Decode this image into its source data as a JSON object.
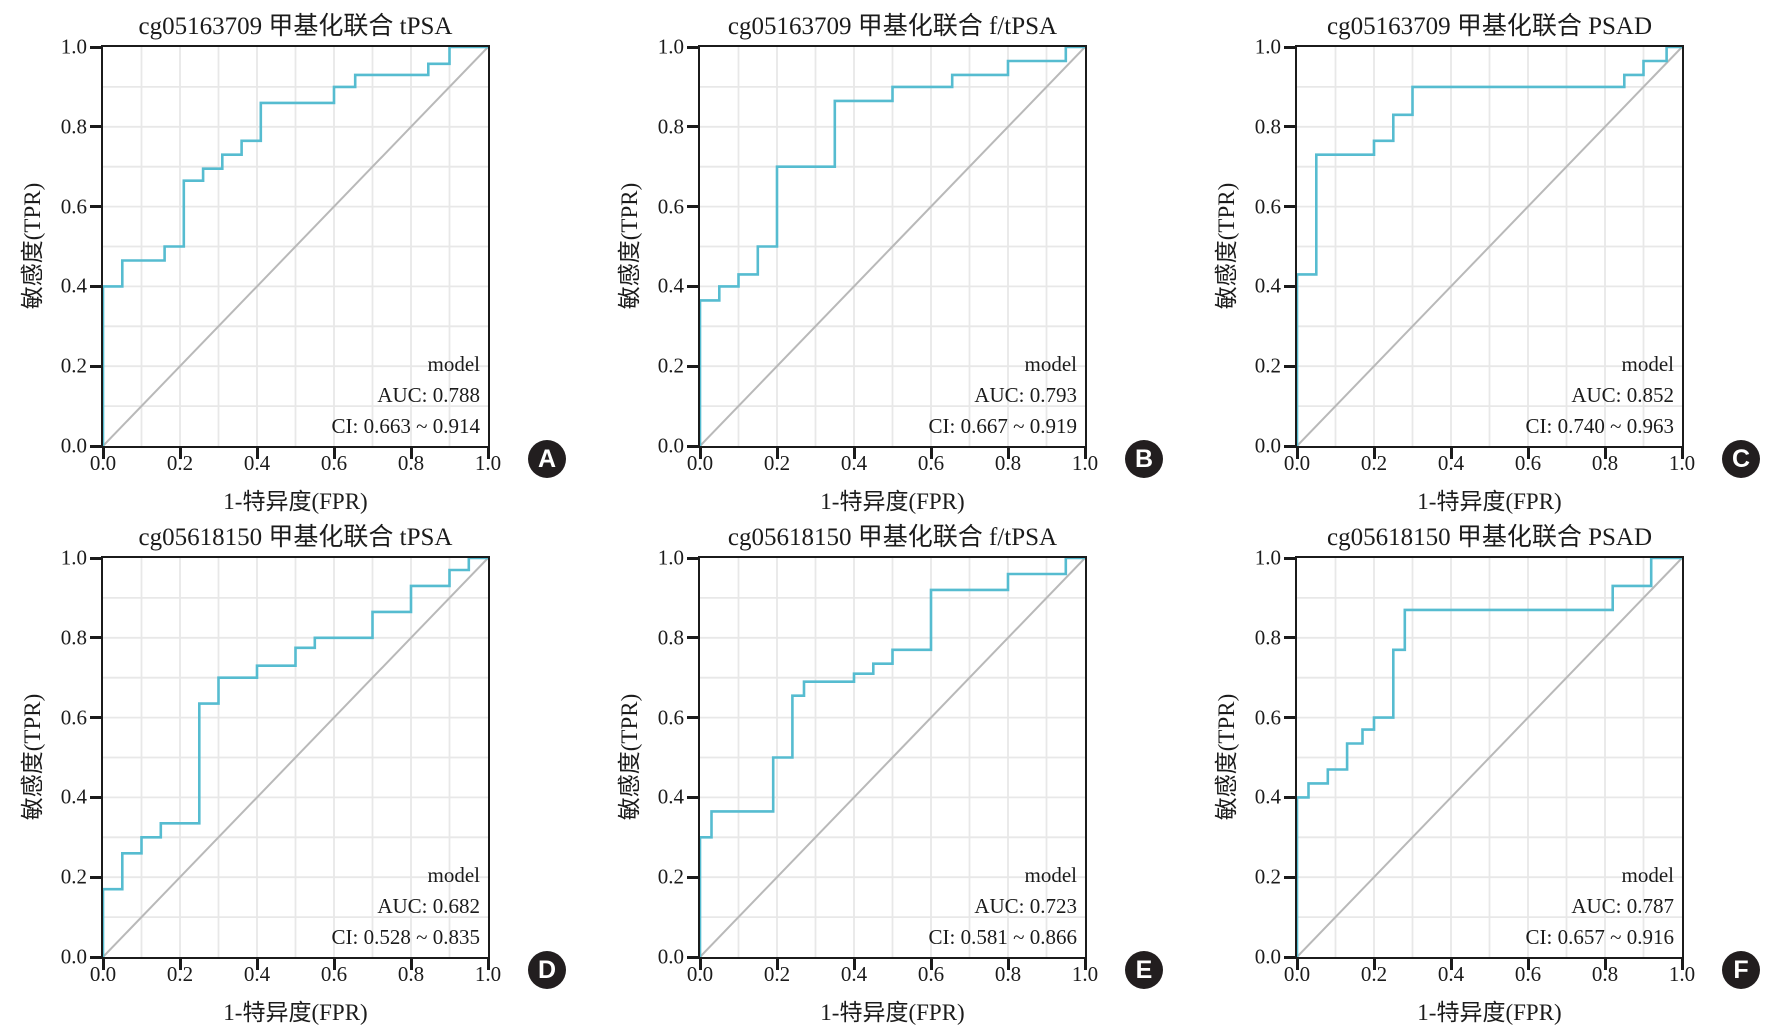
{
  "figure": {
    "background": "#ffffff",
    "curve_color": "#56bcd0",
    "reference_color": "#b9b9b9",
    "grid_color": "#e8e8e8",
    "axis_color": "#1b1b1b",
    "badge_bg": "#221e1f",
    "badge_fg": "#ffffff"
  },
  "chart_data": [
    {
      "type": "line",
      "panel": "A",
      "title": "cg05163709 甲基化联合 tPSA",
      "xlabel": "1-特异度(FPR)",
      "ylabel": "敏感度(TPR)",
      "legend": "model",
      "auc": "0.788",
      "ci": "0.663 ~ 0.914",
      "annotation": [
        "model",
        "AUC: 0.788",
        "CI: 0.663 ~ 0.914"
      ],
      "xlim": [
        0,
        1
      ],
      "ylim": [
        0,
        1
      ],
      "grid_interval": 0.1,
      "xticks": [
        "0.0",
        "0.2",
        "0.4",
        "0.6",
        "0.8",
        "1.0"
      ],
      "yticks": [
        "0.0",
        "0.2",
        "0.4",
        "0.6",
        "0.8",
        "1.0"
      ],
      "reference_line": [
        [
          0,
          0
        ],
        [
          1,
          1
        ]
      ],
      "roc_curve": [
        [
          0,
          0
        ],
        [
          0,
          0.4
        ],
        [
          0.05,
          0.4
        ],
        [
          0.05,
          0.465
        ],
        [
          0.16,
          0.465
        ],
        [
          0.16,
          0.5
        ],
        [
          0.21,
          0.5
        ],
        [
          0.21,
          0.665
        ],
        [
          0.26,
          0.665
        ],
        [
          0.26,
          0.695
        ],
        [
          0.31,
          0.695
        ],
        [
          0.31,
          0.73
        ],
        [
          0.36,
          0.73
        ],
        [
          0.36,
          0.765
        ],
        [
          0.41,
          0.765
        ],
        [
          0.41,
          0.86
        ],
        [
          0.6,
          0.86
        ],
        [
          0.6,
          0.9
        ],
        [
          0.655,
          0.9
        ],
        [
          0.655,
          0.93
        ],
        [
          0.845,
          0.93
        ],
        [
          0.845,
          0.958
        ],
        [
          0.9,
          0.958
        ],
        [
          0.9,
          1.0
        ],
        [
          1,
          1
        ]
      ]
    },
    {
      "type": "line",
      "panel": "B",
      "title": "cg05163709 甲基化联合 f/tPSA",
      "xlabel": "1-特异度(FPR)",
      "ylabel": "敏感度(TPR)",
      "legend": "model",
      "auc": "0.793",
      "ci": "0.667 ~ 0.919",
      "annotation": [
        "model",
        "AUC: 0.793",
        "CI: 0.667 ~ 0.919"
      ],
      "xlim": [
        0,
        1
      ],
      "ylim": [
        0,
        1
      ],
      "grid_interval": 0.1,
      "xticks": [
        "0.0",
        "0.2",
        "0.4",
        "0.6",
        "0.8",
        "1.0"
      ],
      "yticks": [
        "0.0",
        "0.2",
        "0.4",
        "0.6",
        "0.8",
        "1.0"
      ],
      "reference_line": [
        [
          0,
          0
        ],
        [
          1,
          1
        ]
      ],
      "roc_curve": [
        [
          0,
          0
        ],
        [
          0,
          0.365
        ],
        [
          0.05,
          0.365
        ],
        [
          0.05,
          0.4
        ],
        [
          0.1,
          0.4
        ],
        [
          0.1,
          0.43
        ],
        [
          0.15,
          0.43
        ],
        [
          0.15,
          0.5
        ],
        [
          0.2,
          0.5
        ],
        [
          0.2,
          0.7
        ],
        [
          0.35,
          0.7
        ],
        [
          0.35,
          0.865
        ],
        [
          0.5,
          0.865
        ],
        [
          0.5,
          0.9
        ],
        [
          0.655,
          0.9
        ],
        [
          0.655,
          0.93
        ],
        [
          0.8,
          0.93
        ],
        [
          0.8,
          0.965
        ],
        [
          0.95,
          0.965
        ],
        [
          0.95,
          1.0
        ],
        [
          1,
          1
        ]
      ]
    },
    {
      "type": "line",
      "panel": "C",
      "title": "cg05163709 甲基化联合 PSAD",
      "xlabel": "1-特异度(FPR)",
      "ylabel": "敏感度(TPR)",
      "legend": "model",
      "auc": "0.852",
      "ci": "0.740 ~ 0.963",
      "annotation": [
        "model",
        "AUC: 0.852",
        "CI: 0.740 ~ 0.963"
      ],
      "xlim": [
        0,
        1
      ],
      "ylim": [
        0,
        1
      ],
      "grid_interval": 0.1,
      "xticks": [
        "0.0",
        "0.2",
        "0.4",
        "0.6",
        "0.8",
        "1.0"
      ],
      "yticks": [
        "0.0",
        "0.2",
        "0.4",
        "0.6",
        "0.8",
        "1.0"
      ],
      "reference_line": [
        [
          0,
          0
        ],
        [
          1,
          1
        ]
      ],
      "roc_curve": [
        [
          0,
          0
        ],
        [
          0,
          0.43
        ],
        [
          0.05,
          0.43
        ],
        [
          0.05,
          0.73
        ],
        [
          0.2,
          0.73
        ],
        [
          0.2,
          0.765
        ],
        [
          0.25,
          0.765
        ],
        [
          0.25,
          0.83
        ],
        [
          0.3,
          0.83
        ],
        [
          0.3,
          0.9
        ],
        [
          0.85,
          0.9
        ],
        [
          0.85,
          0.93
        ],
        [
          0.9,
          0.93
        ],
        [
          0.9,
          0.965
        ],
        [
          0.96,
          0.965
        ],
        [
          0.96,
          1.0
        ],
        [
          1,
          1
        ]
      ]
    },
    {
      "type": "line",
      "panel": "D",
      "title": "cg05618150 甲基化联合 tPSA",
      "xlabel": "1-特异度(FPR)",
      "ylabel": "敏感度(TPR)",
      "legend": "model",
      "auc": "0.682",
      "ci": "0.528 ~ 0.835",
      "annotation": [
        "model",
        "AUC: 0.682",
        "CI: 0.528 ~ 0.835"
      ],
      "xlim": [
        0,
        1
      ],
      "ylim": [
        0,
        1
      ],
      "grid_interval": 0.1,
      "xticks": [
        "0.0",
        "0.2",
        "0.4",
        "0.6",
        "0.8",
        "1.0"
      ],
      "yticks": [
        "0.0",
        "0.2",
        "0.4",
        "0.6",
        "0.8",
        "1.0"
      ],
      "reference_line": [
        [
          0,
          0
        ],
        [
          1,
          1
        ]
      ],
      "roc_curve": [
        [
          0,
          0
        ],
        [
          0,
          0.17
        ],
        [
          0.05,
          0.17
        ],
        [
          0.05,
          0.26
        ],
        [
          0.1,
          0.26
        ],
        [
          0.1,
          0.3
        ],
        [
          0.15,
          0.3
        ],
        [
          0.15,
          0.335
        ],
        [
          0.25,
          0.335
        ],
        [
          0.25,
          0.635
        ],
        [
          0.3,
          0.635
        ],
        [
          0.3,
          0.7
        ],
        [
          0.4,
          0.7
        ],
        [
          0.4,
          0.73
        ],
        [
          0.5,
          0.73
        ],
        [
          0.5,
          0.775
        ],
        [
          0.55,
          0.775
        ],
        [
          0.55,
          0.8
        ],
        [
          0.7,
          0.8
        ],
        [
          0.7,
          0.865
        ],
        [
          0.8,
          0.865
        ],
        [
          0.8,
          0.93
        ],
        [
          0.9,
          0.93
        ],
        [
          0.9,
          0.97
        ],
        [
          0.95,
          0.97
        ],
        [
          0.95,
          1.0
        ],
        [
          1,
          1
        ]
      ]
    },
    {
      "type": "line",
      "panel": "E",
      "title": "cg05618150 甲基化联合 f/tPSA",
      "xlabel": "1-特异度(FPR)",
      "ylabel": "敏感度(TPR)",
      "legend": "model",
      "auc": "0.723",
      "ci": "0.581 ~ 0.866",
      "annotation": [
        "model",
        "AUC: 0.723",
        "CI: 0.581 ~ 0.866"
      ],
      "xlim": [
        0,
        1
      ],
      "ylim": [
        0,
        1
      ],
      "grid_interval": 0.1,
      "xticks": [
        "0.0",
        "0.2",
        "0.4",
        "0.6",
        "0.8",
        "1.0"
      ],
      "yticks": [
        "0.0",
        "0.2",
        "0.4",
        "0.6",
        "0.8",
        "1.0"
      ],
      "reference_line": [
        [
          0,
          0
        ],
        [
          1,
          1
        ]
      ],
      "roc_curve": [
        [
          0,
          0
        ],
        [
          0,
          0.3
        ],
        [
          0.03,
          0.3
        ],
        [
          0.03,
          0.365
        ],
        [
          0.19,
          0.365
        ],
        [
          0.19,
          0.5
        ],
        [
          0.24,
          0.5
        ],
        [
          0.24,
          0.655
        ],
        [
          0.27,
          0.655
        ],
        [
          0.27,
          0.69
        ],
        [
          0.4,
          0.69
        ],
        [
          0.4,
          0.71
        ],
        [
          0.45,
          0.71
        ],
        [
          0.45,
          0.735
        ],
        [
          0.5,
          0.735
        ],
        [
          0.5,
          0.77
        ],
        [
          0.6,
          0.77
        ],
        [
          0.6,
          0.92
        ],
        [
          0.8,
          0.92
        ],
        [
          0.8,
          0.96
        ],
        [
          0.95,
          0.96
        ],
        [
          0.95,
          1.0
        ],
        [
          1,
          1
        ]
      ]
    },
    {
      "type": "line",
      "panel": "F",
      "title": "cg05618150 甲基化联合 PSAD",
      "xlabel": "1-特异度(FPR)",
      "ylabel": "敏感度(TPR)",
      "legend": "model",
      "auc": "0.787",
      "ci": "0.657 ~ 0.916",
      "annotation": [
        "model",
        "AUC: 0.787",
        "CI: 0.657 ~ 0.916"
      ],
      "xlim": [
        0,
        1
      ],
      "ylim": [
        0,
        1
      ],
      "grid_interval": 0.1,
      "xticks": [
        "0.0",
        "0.2",
        "0.4",
        "0.6",
        "0.8",
        "1.0"
      ],
      "yticks": [
        "0.0",
        "0.2",
        "0.4",
        "0.6",
        "0.8",
        "1.0"
      ],
      "reference_line": [
        [
          0,
          0
        ],
        [
          1,
          1
        ]
      ],
      "roc_curve": [
        [
          0,
          0
        ],
        [
          0,
          0.4
        ],
        [
          0.03,
          0.4
        ],
        [
          0.03,
          0.435
        ],
        [
          0.08,
          0.435
        ],
        [
          0.08,
          0.47
        ],
        [
          0.13,
          0.47
        ],
        [
          0.13,
          0.535
        ],
        [
          0.17,
          0.535
        ],
        [
          0.17,
          0.57
        ],
        [
          0.2,
          0.57
        ],
        [
          0.2,
          0.6
        ],
        [
          0.25,
          0.6
        ],
        [
          0.25,
          0.77
        ],
        [
          0.28,
          0.77
        ],
        [
          0.28,
          0.87
        ],
        [
          0.82,
          0.87
        ],
        [
          0.82,
          0.93
        ],
        [
          0.92,
          0.93
        ],
        [
          0.92,
          1.0
        ],
        [
          1,
          1
        ]
      ]
    }
  ]
}
